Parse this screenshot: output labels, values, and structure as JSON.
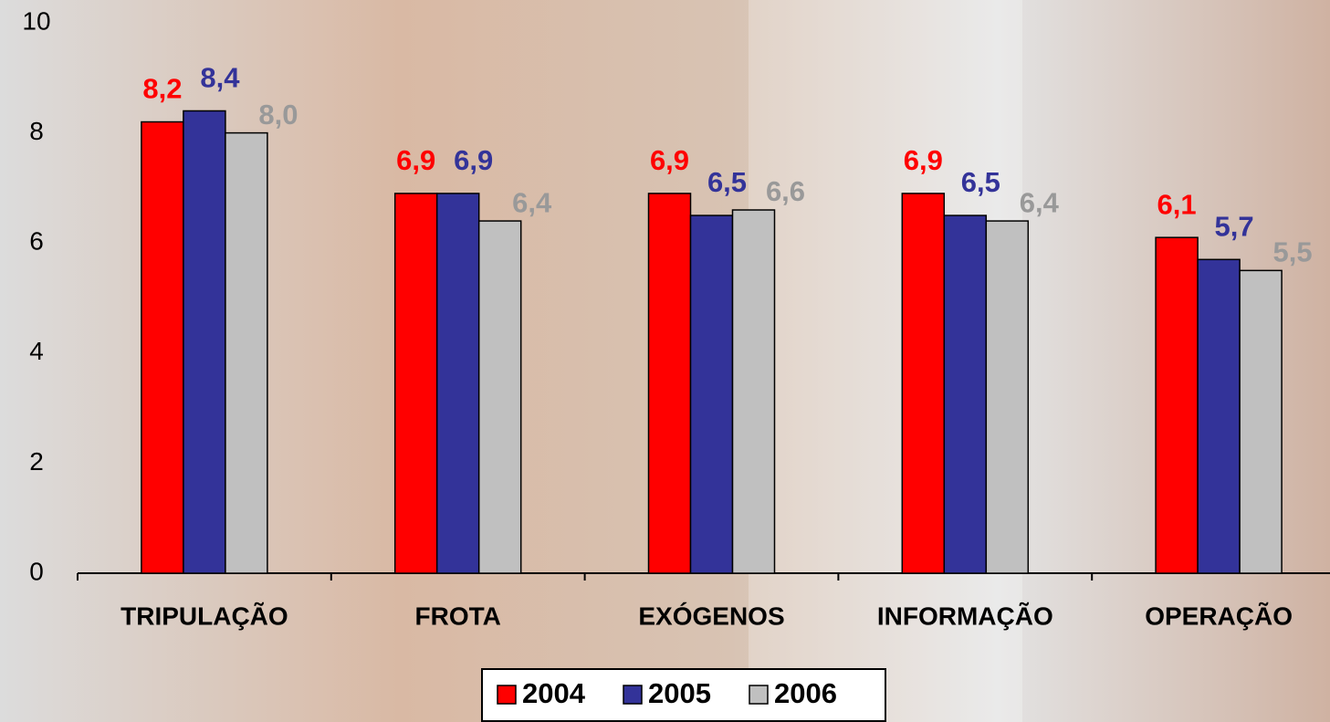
{
  "chart_data": {
    "type": "bar",
    "categories": [
      "TRIPULAÇÃO",
      "FROTA",
      "EXÓGENOS",
      "INFORMAÇÃO",
      "OPERAÇÃO"
    ],
    "series": [
      {
        "name": "2004",
        "color": "#ff0000",
        "label_color": "#ff0000",
        "values": [
          8.2,
          6.9,
          6.9,
          6.9,
          6.1
        ],
        "value_labels": [
          "8,2",
          "6,9",
          "6,9",
          "6,9",
          "6,1"
        ]
      },
      {
        "name": "2005",
        "color": "#333399",
        "label_color": "#333399",
        "values": [
          8.4,
          6.9,
          6.5,
          6.5,
          5.7
        ],
        "value_labels": [
          "8,4",
          "6,9",
          "6,5",
          "6,5",
          "5,7"
        ]
      },
      {
        "name": "2006",
        "color": "#c0c0c0",
        "label_color": "#999999",
        "values": [
          8.0,
          6.4,
          6.6,
          6.4,
          5.5
        ],
        "value_labels": [
          "8,0",
          "6,4",
          "6,6",
          "6,4",
          "5,5"
        ]
      }
    ],
    "ylim": [
      0,
      10
    ],
    "yticks": [
      0,
      2,
      4,
      6,
      8,
      10
    ],
    "grid": false,
    "legend": "bottom"
  }
}
